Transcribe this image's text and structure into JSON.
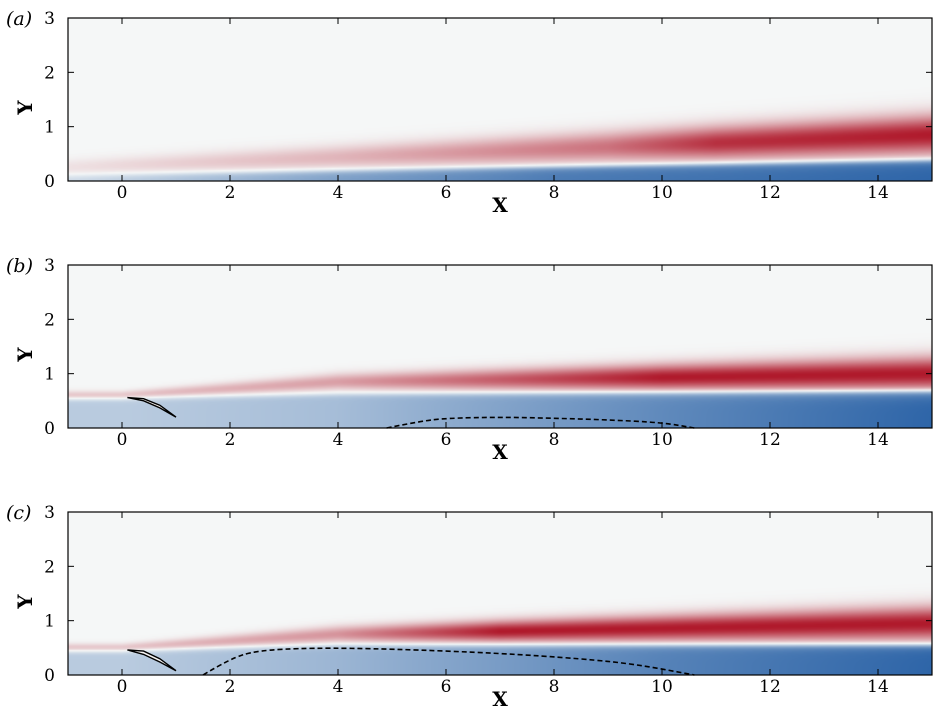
{
  "chart_data": [
    {
      "type": "heatmap",
      "panel_label": "(a)",
      "xlabel": "X",
      "ylabel": "Y",
      "xlim": [
        -1,
        15
      ],
      "ylim": [
        0,
        3
      ],
      "xticks": [
        0,
        2,
        4,
        6,
        8,
        10,
        12,
        14
      ],
      "yticks": [
        0,
        1,
        2,
        3
      ],
      "grid": false,
      "colormap": [
        "#2e65a8",
        "#f5f7f7",
        "#b01a2c"
      ],
      "upper_layer": {
        "center_y": [
          [
            -1,
            0.25
          ],
          [
            15,
            0.85
          ]
        ],
        "half_width": [
          [
            -1,
            0.15
          ],
          [
            15,
            0.35
          ]
        ],
        "intensity": [
          [
            -1,
            0.1
          ],
          [
            4,
            0.3
          ],
          [
            9,
            0.6
          ],
          [
            11,
            0.9
          ],
          [
            15,
            1.0
          ]
        ]
      },
      "lower_layer": {
        "top_y": [
          [
            -1,
            0.1
          ],
          [
            15,
            0.38
          ]
        ],
        "intensity": [
          [
            -1,
            0.2
          ],
          [
            4,
            0.6
          ],
          [
            8,
            0.85
          ],
          [
            15,
            1.0
          ]
        ]
      },
      "body": null,
      "dashed_contour": null
    },
    {
      "type": "heatmap",
      "panel_label": "(b)",
      "xlabel": "X",
      "ylabel": "Y",
      "xlim": [
        -1,
        15
      ],
      "ylim": [
        0,
        3
      ],
      "xticks": [
        0,
        2,
        4,
        6,
        8,
        10,
        12,
        14
      ],
      "yticks": [
        0,
        1,
        2,
        3
      ],
      "grid": false,
      "colormap": [
        "#2e65a8",
        "#f5f7f7",
        "#b01a2c"
      ],
      "upper_layer": {
        "center_y": [
          [
            0,
            0.6
          ],
          [
            4,
            0.85
          ],
          [
            15,
            1.0
          ]
        ],
        "half_width": [
          [
            0,
            0.08
          ],
          [
            4,
            0.15
          ],
          [
            15,
            0.3
          ]
        ],
        "intensity": [
          [
            0,
            0.25
          ],
          [
            4,
            0.4
          ],
          [
            8,
            0.8
          ],
          [
            10,
            1.0
          ],
          [
            15,
            1.0
          ]
        ]
      },
      "lower_layer": {
        "top_y": [
          [
            0,
            0.55
          ],
          [
            4,
            0.62
          ],
          [
            15,
            0.68
          ]
        ],
        "intensity": [
          [
            0,
            0.3
          ],
          [
            4,
            0.4
          ],
          [
            10,
            0.75
          ],
          [
            15,
            1.0
          ]
        ]
      },
      "body": {
        "upper": [
          [
            0.1,
            0.56
          ],
          [
            0.4,
            0.54
          ],
          [
            0.7,
            0.42
          ],
          [
            1.0,
            0.2
          ]
        ],
        "lower": [
          [
            0.1,
            0.56
          ],
          [
            0.4,
            0.5
          ],
          [
            0.7,
            0.37
          ],
          [
            1.0,
            0.2
          ]
        ]
      },
      "dashed_contour": [
        [
          4.9,
          0.0
        ],
        [
          5.5,
          0.12
        ],
        [
          6.0,
          0.18
        ],
        [
          7.0,
          0.2
        ],
        [
          8.0,
          0.18
        ],
        [
          9.0,
          0.15
        ],
        [
          10.0,
          0.1
        ],
        [
          10.6,
          0.0
        ]
      ]
    },
    {
      "type": "heatmap",
      "panel_label": "(c)",
      "xlabel": "X",
      "ylabel": "Y",
      "xlim": [
        -1,
        15
      ],
      "ylim": [
        0,
        3
      ],
      "xticks": [
        0,
        2,
        4,
        6,
        8,
        10,
        12,
        14
      ],
      "yticks": [
        0,
        1,
        2,
        3
      ],
      "grid": false,
      "colormap": [
        "#2e65a8",
        "#f5f7f7",
        "#b01a2c"
      ],
      "upper_layer": {
        "center_y": [
          [
            0,
            0.5
          ],
          [
            4,
            0.75
          ],
          [
            15,
            0.95
          ]
        ],
        "half_width": [
          [
            0,
            0.08
          ],
          [
            4,
            0.15
          ],
          [
            15,
            0.3
          ]
        ],
        "intensity": [
          [
            0,
            0.25
          ],
          [
            4,
            0.45
          ],
          [
            7,
            1.0
          ],
          [
            15,
            1.0
          ]
        ]
      },
      "lower_layer": {
        "top_y": [
          [
            0,
            0.45
          ],
          [
            4,
            0.55
          ],
          [
            15,
            0.55
          ]
        ],
        "intensity": [
          [
            0,
            0.3
          ],
          [
            4,
            0.45
          ],
          [
            10,
            0.8
          ],
          [
            15,
            1.0
          ]
        ]
      },
      "body": {
        "upper": [
          [
            0.1,
            0.46
          ],
          [
            0.4,
            0.44
          ],
          [
            0.7,
            0.3
          ],
          [
            1.0,
            0.08
          ]
        ],
        "lower": [
          [
            0.1,
            0.46
          ],
          [
            0.4,
            0.38
          ],
          [
            0.7,
            0.24
          ],
          [
            1.0,
            0.08
          ]
        ]
      },
      "dashed_contour": [
        [
          1.5,
          0.0
        ],
        [
          2.0,
          0.3
        ],
        [
          2.5,
          0.45
        ],
        [
          3.5,
          0.5
        ],
        [
          5.0,
          0.48
        ],
        [
          7.0,
          0.4
        ],
        [
          8.5,
          0.3
        ],
        [
          9.5,
          0.2
        ],
        [
          10.6,
          0.0
        ]
      ]
    }
  ]
}
